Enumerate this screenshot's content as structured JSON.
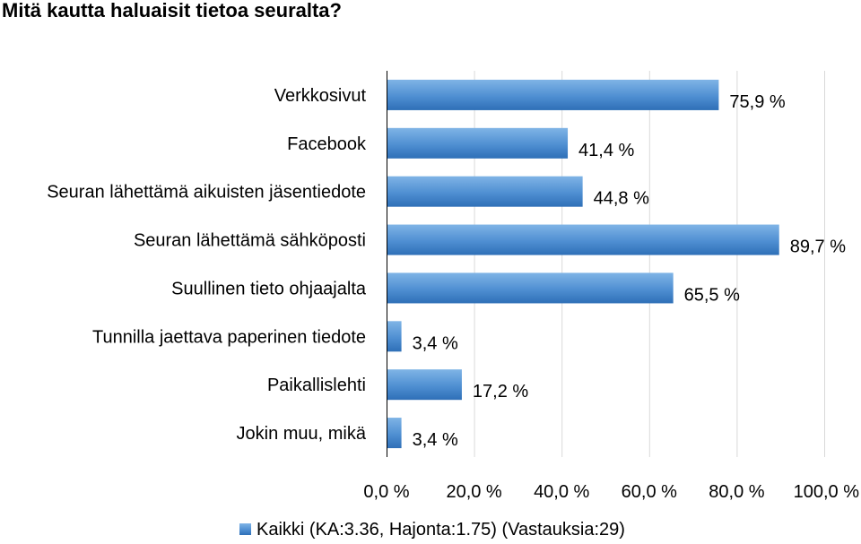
{
  "colors": {
    "bar_light": "#7fb4e6",
    "bar_mid": "#4f8fd2",
    "bar_dark": "#2e6fb7",
    "gridline": "#d9d9d9",
    "axis": "#000000"
  },
  "chart_data": {
    "type": "bar",
    "orientation": "horizontal",
    "title": "Mitä kautta haluaisit tietoa seuralta?",
    "categories": [
      "Verkkosivut",
      "Facebook",
      "Seuran lähettämä aikuisten jäsentiedote",
      "Seuran lähettämä sähköposti",
      "Suullinen tieto ohjaajalta",
      "Tunnilla jaettava paperinen tiedote",
      "Paikallislehti",
      "Jokin muu, mikä"
    ],
    "values": [
      75.9,
      41.4,
      44.8,
      89.7,
      65.5,
      3.4,
      17.2,
      3.4
    ],
    "value_labels": [
      "75,9 %",
      "41,4 %",
      "44,8 %",
      "89,7 %",
      "65,5 %",
      "3,4 %",
      "17,2 %",
      "3,4 %"
    ],
    "xlim": [
      0,
      100
    ],
    "x_ticks": [
      0,
      20,
      40,
      60,
      80,
      100
    ],
    "x_tick_labels": [
      "0,0 %",
      "20,0 %",
      "40,0 %",
      "60,0 %",
      "80,0 %",
      "100,0 %"
    ],
    "grid": true,
    "legend": {
      "position": "bottom",
      "entries": [
        "Kaikki (KA:3.36, Hajonta:1.75) (Vastauksia:29)"
      ]
    }
  }
}
